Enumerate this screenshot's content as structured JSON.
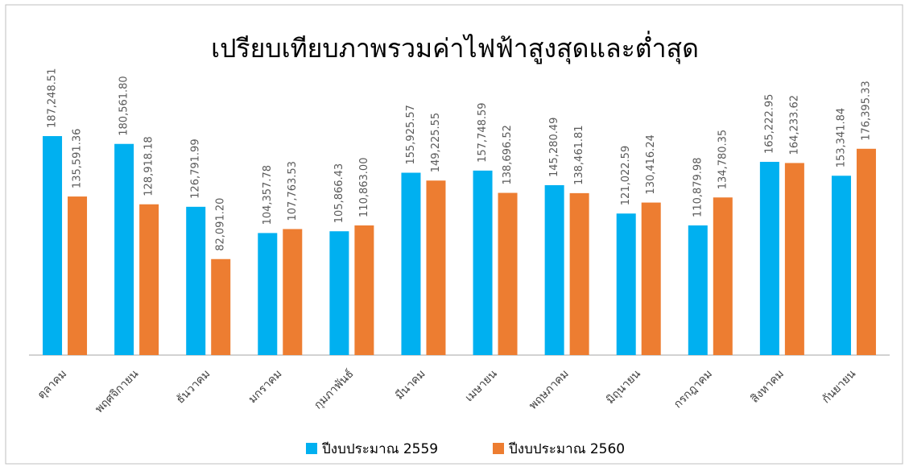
{
  "chart_data": {
    "type": "bar",
    "title": "เปรียบเทียบภาพรวมค่าไฟฟ้าสูงสุดและต่ำสุด",
    "categories": [
      "ตุลาคม",
      "พฤศจิกายน",
      "ธันวาคม",
      "มกราคม",
      "กุมภาพันธ์",
      "มีนาคม",
      "เมษายน",
      "พฤษภาคม",
      "มิถุนายน",
      "กรกฎาคม",
      "สิงหาคม",
      "กันยายน"
    ],
    "series": [
      {
        "name": "ปีงบประมาณ 2559",
        "color": "#00b0f0",
        "values": [
          187248.51,
          180561.8,
          126791.99,
          104357.78,
          105866.43,
          155925.57,
          157748.59,
          145280.49,
          121022.59,
          110879.98,
          165222.95,
          153341.84
        ],
        "value_labels": [
          "187,248.51",
          "180,561.80",
          "126,791.99",
          "104,357.78",
          "105,866.43",
          "155,925.57",
          "157,748.59",
          "145,280.49",
          "121,022.59",
          "110,879.98",
          "165,222.95",
          "153,341.84"
        ]
      },
      {
        "name": "ปีงบประมาณ 2560",
        "color": "#ed7d31",
        "values": [
          135591.36,
          128918.18,
          82091.2,
          107763.53,
          110863.0,
          149225.55,
          138696.52,
          138461.81,
          130416.24,
          134780.35,
          164233.62,
          176395.33
        ],
        "value_labels": [
          "135,591.36",
          "128,918.18",
          "82,091.20",
          "107,763.53",
          "110,863.00",
          "149,225.55",
          "138,696.52",
          "138,461.81",
          "130,416.24",
          "134,780.35",
          "164,233.62",
          "176,395.33"
        ]
      }
    ],
    "ylim": [
      0,
      200000
    ],
    "legend": "bottom"
  }
}
